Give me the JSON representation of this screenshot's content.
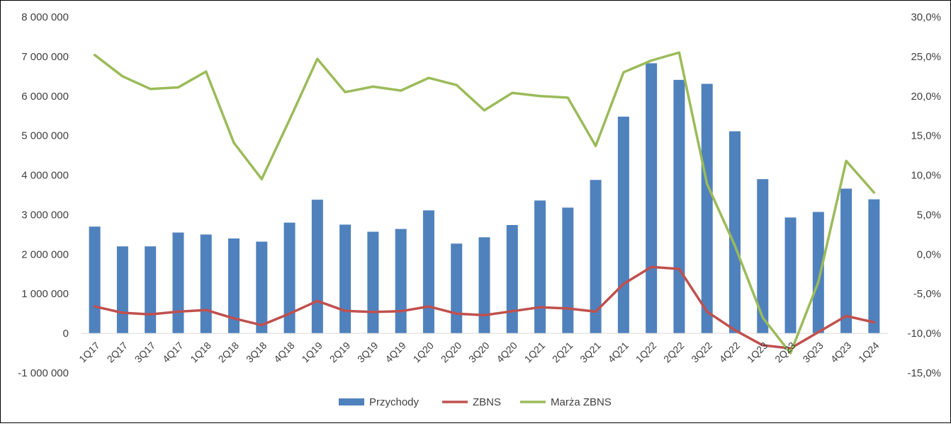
{
  "chart_data": {
    "type": "bar",
    "title": "",
    "xlabel": "",
    "ylabel": "",
    "categories": [
      "1Q17",
      "2Q17",
      "3Q17",
      "4Q17",
      "1Q18",
      "2Q18",
      "3Q18",
      "4Q18",
      "1Q19",
      "2Q19",
      "3Q19",
      "4Q19",
      "1Q20",
      "2Q20",
      "3Q20",
      "4Q20",
      "1Q21",
      "2Q21",
      "3Q21",
      "4Q21",
      "1Q22",
      "2Q22",
      "3Q22",
      "4Q22",
      "1Q23",
      "2Q23",
      "3Q23",
      "4Q23",
      "1Q24"
    ],
    "ylim": [
      -1000000,
      8000000
    ],
    "y2lim": [
      -0.15,
      0.3
    ],
    "y_ticks": [
      "-1 000 000",
      "0",
      "1 000 000",
      "2 000 000",
      "3 000 000",
      "4 000 000",
      "5 000 000",
      "6 000 000",
      "7 000 000",
      "8 000 000"
    ],
    "y2_ticks": [
      "-15,0%",
      "-10,0%",
      "-5,0%",
      "0,0%",
      "5,0%",
      "10,0%",
      "15,0%",
      "20,0%",
      "25,0%",
      "30,0%"
    ],
    "grid": false,
    "legend_position": "bottom",
    "series": [
      {
        "name": "Przychody",
        "type": "bar",
        "axis": "left",
        "color": "#4f81bd",
        "values": [
          2700000,
          2200000,
          2200000,
          2550000,
          2500000,
          2400000,
          2320000,
          2800000,
          3380000,
          2750000,
          2570000,
          2640000,
          3110000,
          2270000,
          2430000,
          2740000,
          3360000,
          3180000,
          3880000,
          5480000,
          6830000,
          6410000,
          6310000,
          5110000,
          3900000,
          2930000,
          3070000,
          3660000,
          3390000
        ]
      },
      {
        "name": "ZBNS",
        "type": "line",
        "axis": "left",
        "color": "#c0504d",
        "values": [
          680000,
          520000,
          480000,
          550000,
          590000,
          380000,
          210000,
          500000,
          820000,
          570000,
          540000,
          560000,
          680000,
          500000,
          460000,
          560000,
          660000,
          630000,
          550000,
          1250000,
          1680000,
          1630000,
          550000,
          80000,
          -300000,
          -380000,
          30000,
          440000,
          280000
        ]
      },
      {
        "name": "Marża ZBNS",
        "type": "line",
        "axis": "right",
        "color": "#9bbb59",
        "values": [
          0.252,
          0.225,
          0.209,
          0.211,
          0.231,
          0.141,
          0.095,
          0.17,
          0.247,
          0.205,
          0.212,
          0.207,
          0.223,
          0.214,
          0.182,
          0.204,
          0.2,
          0.198,
          0.137,
          0.23,
          0.245,
          0.255,
          0.089,
          0.011,
          -0.08,
          -0.125,
          -0.035,
          0.118,
          0.078
        ]
      }
    ]
  }
}
